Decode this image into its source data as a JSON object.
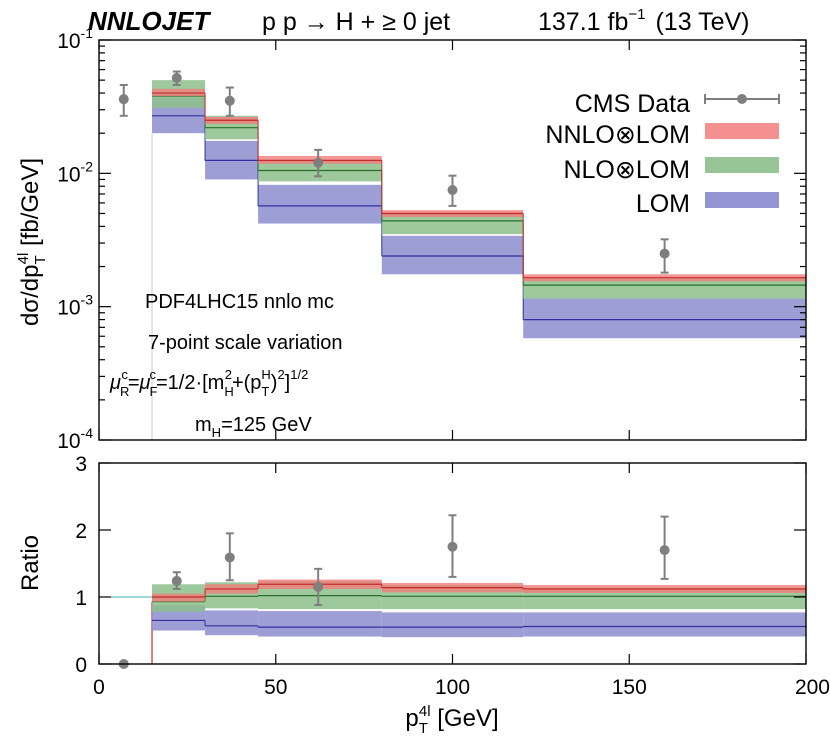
{
  "header": {
    "brand": "NNLOJET",
    "process": "p p → H + ≥ 0 jet",
    "lumi_value": "137.1 fb",
    "lumi_exp": "−1",
    "energy": "(13 TeV)"
  },
  "annotations": {
    "pdf": "PDF4LHC15 nnlo mc",
    "scale": "7-point scale variation",
    "mh": "m",
    "mh_sub": "H",
    "mh_val": "=125 GeV"
  },
  "colors": {
    "data": "#7f7f7f",
    "nnlo": "#f27d7d",
    "nlo": "#8cbf8c",
    "lom": "#9494d2"
  },
  "chart_data": [
    {
      "type": "step",
      "panel": "top",
      "ylabel": "dσ/dp",
      "yscale": "log",
      "ylim": [
        0.0001,
        0.1
      ],
      "xlim": [
        0,
        200
      ],
      "ytick_labels": [
        "10",
        "10",
        "10",
        "10"
      ],
      "ytick_exps": [
        "-1",
        "-2",
        "-3",
        "-4"
      ],
      "legend": [
        "CMS Data",
        "NNLO⊗LOM",
        "NLO⊗LOM",
        "LOM"
      ],
      "legend_position": "top-right",
      "bins": [
        15,
        30,
        45,
        80,
        120,
        200
      ],
      "series": [
        {
          "name": "NNLO⊗LOM",
          "central": [
            0.04,
            0.025,
            0.0125,
            0.005,
            0.00165
          ],
          "low": [
            0.038,
            0.0235,
            0.0118,
            0.0047,
            0.00155
          ],
          "high": [
            0.043,
            0.0265,
            0.0135,
            0.0053,
            0.00175
          ]
        },
        {
          "name": "NLO⊗LOM",
          "central": [
            0.038,
            0.022,
            0.0105,
            0.0044,
            0.00145
          ],
          "low": [
            0.031,
            0.018,
            0.0087,
            0.0035,
            0.00115
          ],
          "high": [
            0.05,
            0.027,
            0.0125,
            0.0051,
            0.00165
          ]
        },
        {
          "name": "LOM",
          "central": [
            0.027,
            0.0125,
            0.0057,
            0.0024,
            0.0008
          ],
          "low": [
            0.02,
            0.009,
            0.0042,
            0.00175,
            0.00058
          ],
          "high": [
            0.037,
            0.0175,
            0.0082,
            0.0034,
            0.00115
          ]
        }
      ],
      "data_points": {
        "name": "CMS Data",
        "x": [
          7,
          22,
          37,
          62,
          100,
          160
        ],
        "y": [
          0.036,
          0.052,
          0.035,
          0.012,
          0.0075,
          0.0025
        ],
        "y_low": [
          0.027,
          0.046,
          0.027,
          0.0095,
          0.0057,
          0.0018
        ],
        "y_high": [
          0.046,
          0.058,
          0.044,
          0.015,
          0.0096,
          0.0032
        ]
      }
    },
    {
      "type": "step",
      "panel": "bottom",
      "ylabel": "Ratio",
      "ylim": [
        0,
        3
      ],
      "yticks": [
        0,
        1,
        2,
        3
      ],
      "xlim": [
        0,
        200
      ],
      "xticks": [
        0,
        50,
        100,
        150,
        200
      ],
      "xlabel": "p",
      "bins": [
        15,
        30,
        45,
        80,
        120,
        200
      ],
      "series": [
        {
          "name": "NNLO⊗LOM",
          "central": [
            1.0,
            1.12,
            1.19,
            1.14,
            1.12
          ],
          "low": [
            0.93,
            1.05,
            1.12,
            1.07,
            1.06
          ],
          "high": [
            1.05,
            1.19,
            1.26,
            1.21,
            1.18
          ]
        },
        {
          "name": "NLO⊗LOM",
          "central": [
            0.93,
            1.01,
            1.02,
            1.01,
            1.01
          ],
          "low": [
            0.78,
            0.83,
            0.82,
            0.82,
            0.82
          ],
          "high": [
            1.19,
            1.22,
            1.24,
            1.18,
            1.14
          ]
        },
        {
          "name": "LOM",
          "central": [
            0.65,
            0.57,
            0.55,
            0.55,
            0.56
          ],
          "low": [
            0.5,
            0.43,
            0.41,
            0.4,
            0.41
          ],
          "high": [
            0.88,
            0.8,
            0.79,
            0.77,
            0.77
          ]
        }
      ],
      "data_points": {
        "name": "CMS Data",
        "x": [
          7,
          22,
          37,
          62,
          100,
          160
        ],
        "y": [
          0.0,
          1.24,
          1.59,
          1.15,
          1.75,
          1.7
        ],
        "y_low": [
          0.0,
          1.12,
          1.25,
          0.88,
          1.3,
          1.27
        ],
        "y_high": [
          0.0,
          1.37,
          1.95,
          1.42,
          2.22,
          2.2
        ]
      }
    }
  ]
}
